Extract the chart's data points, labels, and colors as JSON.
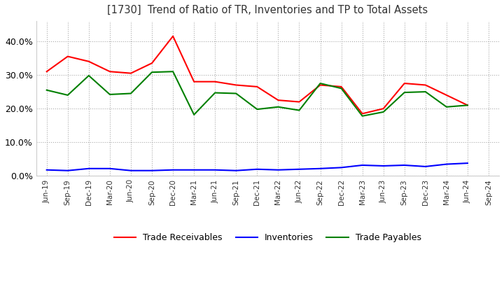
{
  "title": "[1730]  Trend of Ratio of TR, Inventories and TP to Total Assets",
  "x_labels": [
    "Jun-19",
    "Sep-19",
    "Dec-19",
    "Mar-20",
    "Jun-20",
    "Sep-20",
    "Dec-20",
    "Mar-21",
    "Jun-21",
    "Sep-21",
    "Dec-21",
    "Mar-22",
    "Jun-22",
    "Sep-22",
    "Dec-22",
    "Mar-23",
    "Jun-23",
    "Sep-23",
    "Dec-23",
    "Mar-24",
    "Jun-24",
    "Sep-24"
  ],
  "trade_receivables": [
    0.31,
    0.355,
    0.34,
    0.31,
    0.305,
    0.335,
    0.415,
    0.28,
    0.28,
    0.27,
    0.265,
    0.225,
    0.22,
    0.27,
    0.265,
    0.185,
    0.2,
    0.275,
    0.27,
    0.24,
    0.21,
    null
  ],
  "inventories": [
    0.018,
    0.016,
    0.022,
    0.022,
    0.016,
    0.016,
    0.018,
    0.018,
    0.018,
    0.016,
    0.02,
    0.018,
    0.02,
    0.022,
    0.025,
    0.032,
    0.03,
    0.032,
    0.028,
    0.035,
    0.038,
    null
  ],
  "trade_payables": [
    0.255,
    0.24,
    0.298,
    0.242,
    0.245,
    0.308,
    0.31,
    0.182,
    0.247,
    0.245,
    0.198,
    0.205,
    0.195,
    0.275,
    0.26,
    0.178,
    0.19,
    0.248,
    0.25,
    0.205,
    0.21,
    null
  ],
  "tr_color": "#ff0000",
  "inv_color": "#0000ff",
  "tp_color": "#008000",
  "ylim": [
    0.0,
    0.46
  ],
  "yticks": [
    0.0,
    0.1,
    0.2,
    0.3,
    0.4
  ],
  "background_color": "#ffffff",
  "grid_color": "#aaaaaa"
}
